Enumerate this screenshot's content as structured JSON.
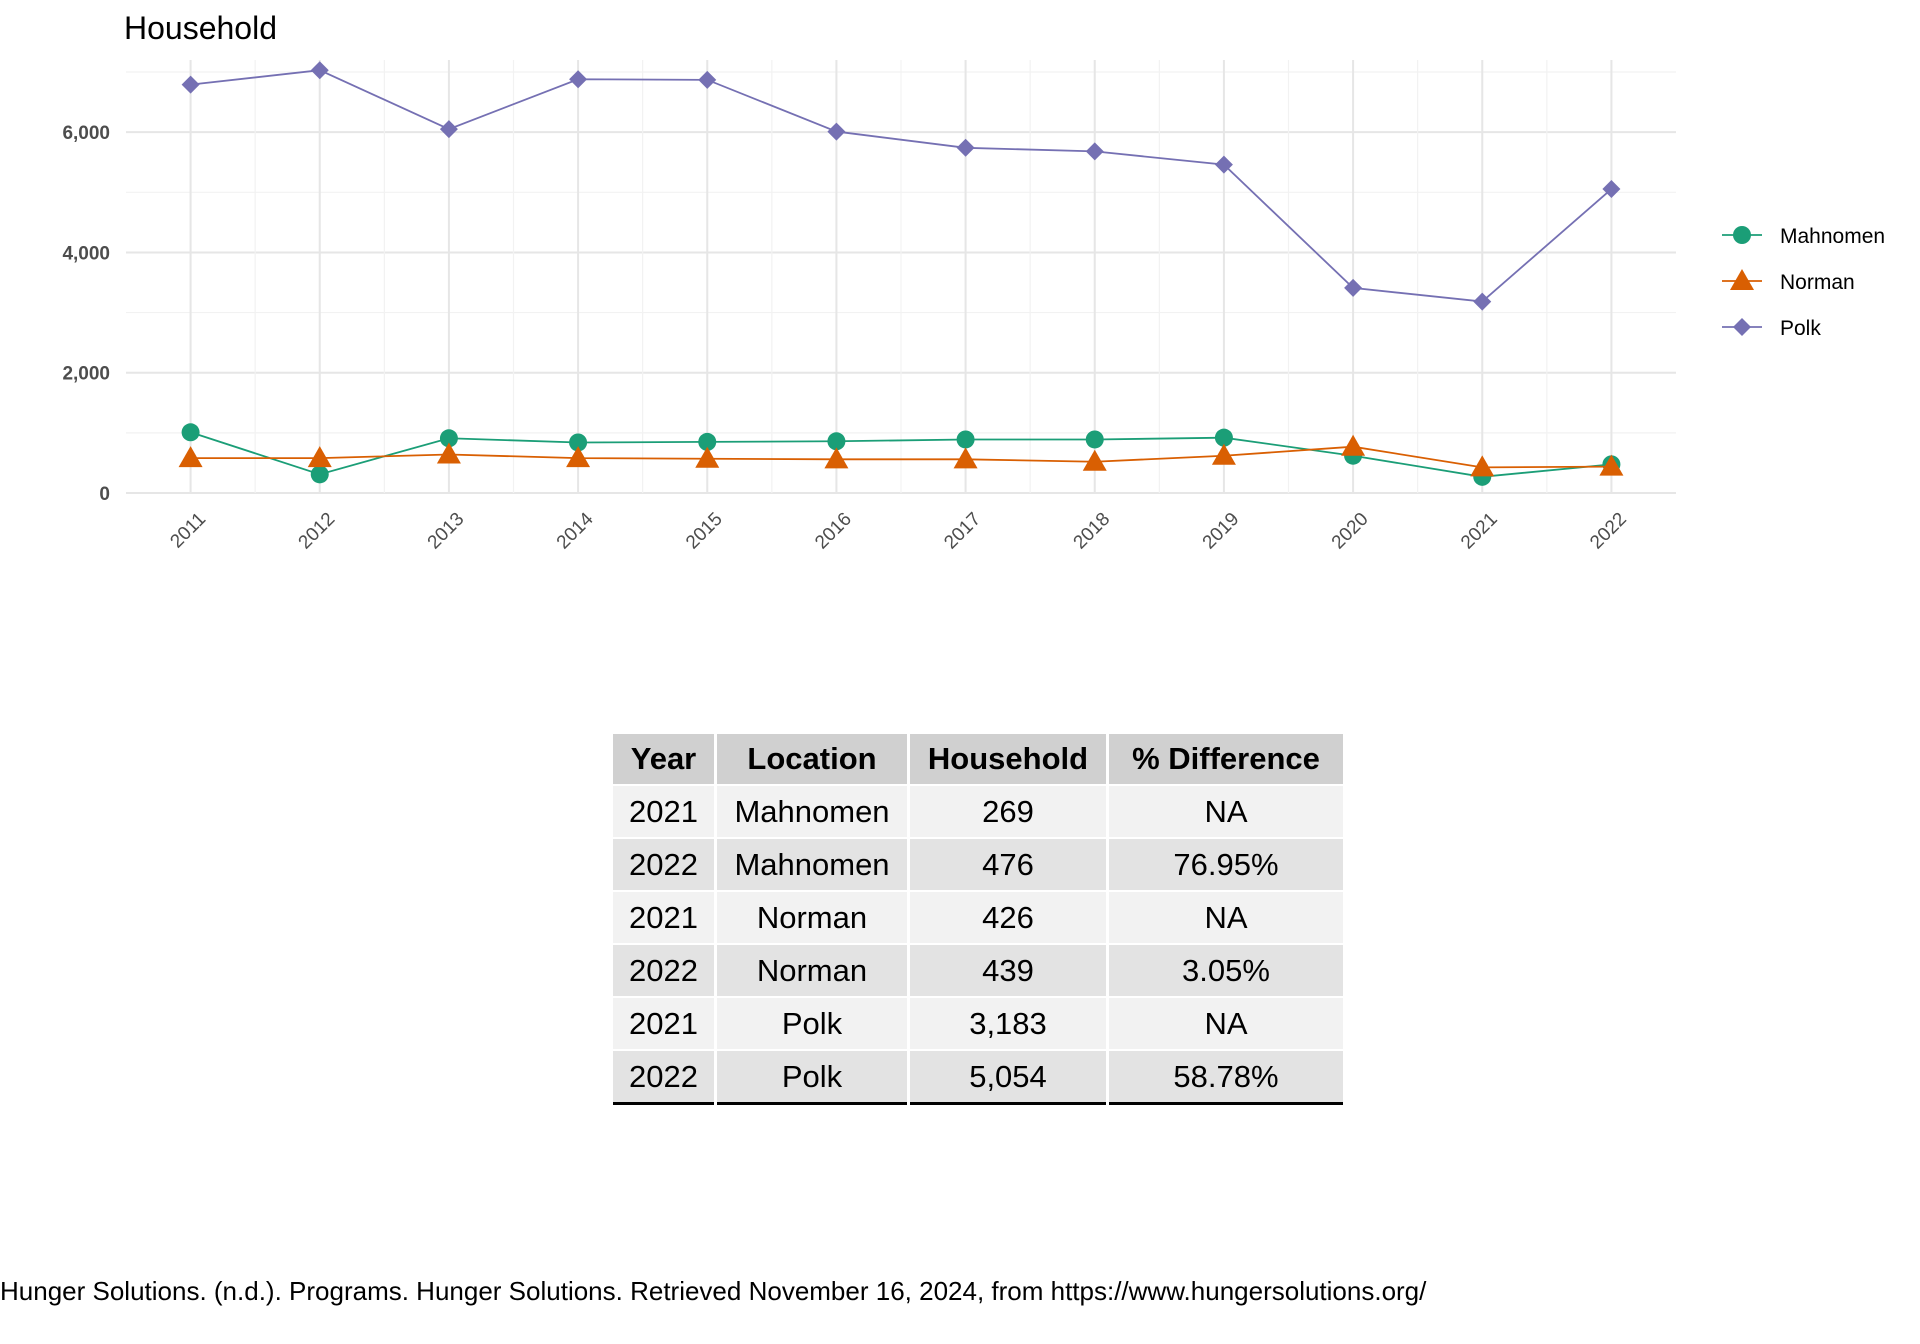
{
  "chart_data": {
    "type": "line",
    "title": "Household",
    "xlabel": "",
    "ylabel": "",
    "x": [
      "2011",
      "2012",
      "2013",
      "2014",
      "2015",
      "2016",
      "2017",
      "2018",
      "2019",
      "2020",
      "2021",
      "2022"
    ],
    "y_ticks": [
      "0",
      "2,000",
      "4,000",
      "6,000"
    ],
    "y_tick_values": [
      0,
      2000,
      4000,
      6000
    ],
    "ylim": [
      0,
      7200
    ],
    "grid": true,
    "legend_position": "right",
    "series": [
      {
        "name": "Mahnomen",
        "marker": "circle",
        "color": "#1b9e77",
        "values": [
          1010,
          310,
          910,
          840,
          850,
          860,
          890,
          890,
          920,
          620,
          269,
          476
        ]
      },
      {
        "name": "Norman",
        "marker": "triangle",
        "color": "#d95f02",
        "values": [
          580,
          580,
          640,
          580,
          570,
          560,
          560,
          520,
          620,
          770,
          426,
          439
        ]
      },
      {
        "name": "Polk",
        "marker": "diamond",
        "color": "#7570b3",
        "values": [
          6790,
          7030,
          6050,
          6880,
          6870,
          6010,
          5740,
          5680,
          5460,
          3410,
          3183,
          5054
        ]
      }
    ]
  },
  "table": {
    "headers": [
      "Year",
      "Location",
      "Household",
      "% Difference"
    ],
    "rows": [
      [
        "2021",
        "Mahnomen",
        "269",
        "NA"
      ],
      [
        "2022",
        "Mahnomen",
        "476",
        "76.95%"
      ],
      [
        "2021",
        "Norman",
        "426",
        "NA"
      ],
      [
        "2022",
        "Norman",
        "439",
        "3.05%"
      ],
      [
        "2021",
        "Polk",
        "3,183",
        "NA"
      ],
      [
        "2022",
        "Polk",
        "5,054",
        "58.78%"
      ]
    ]
  },
  "caption": "Hunger Solutions. (n.d.). Programs. Hunger Solutions. Retrieved November 16, 2024, from https://www.hungersolutions.org/"
}
